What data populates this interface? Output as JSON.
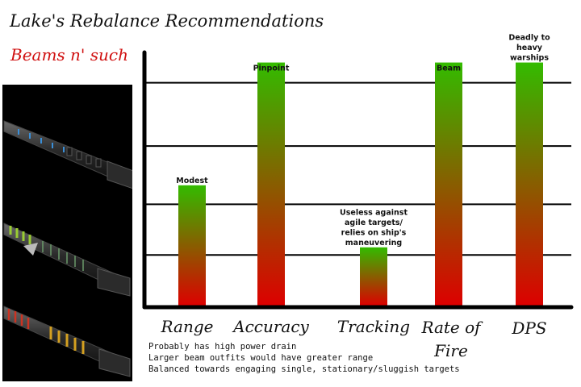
{
  "header": {
    "title": "Lake's Rebalance Recommendations",
    "subtitle": "Beams n' such"
  },
  "weapons": {
    "icons": [
      "blue-beam-weapon-icon",
      "green-beam-weapon-icon",
      "red-beam-weapon-icon"
    ],
    "accent_colors": [
      "#3a8fd8",
      "#9acd32",
      "#cc3322"
    ]
  },
  "chart_data": {
    "type": "bar",
    "categories": [
      "Range",
      "Accuracy",
      "Tracking",
      "Rate of Fire",
      "DPS"
    ],
    "values": [
      4.75,
      9.6,
      2.3,
      9.6,
      9.6
    ],
    "bar_labels": [
      [
        "Modest"
      ],
      [
        "Pinpoint"
      ],
      [
        "Useless against",
        "agile targets/",
        "relies on ship's",
        "maneuvering"
      ],
      [
        "Beam"
      ],
      [
        "Deadly to",
        "heavy",
        "warships"
      ]
    ],
    "ylim": [
      0,
      10
    ],
    "gridlines": [
      2,
      4,
      6.3,
      8.8
    ],
    "grid": true,
    "gradient": {
      "top": "#33bb00",
      "bottom": "#dd0000"
    },
    "notes": [
      "Probably has high power drain",
      "Larger beam outfits would have greater range",
      "Balanced towards engaging single, stationary/sluggish targets"
    ]
  }
}
